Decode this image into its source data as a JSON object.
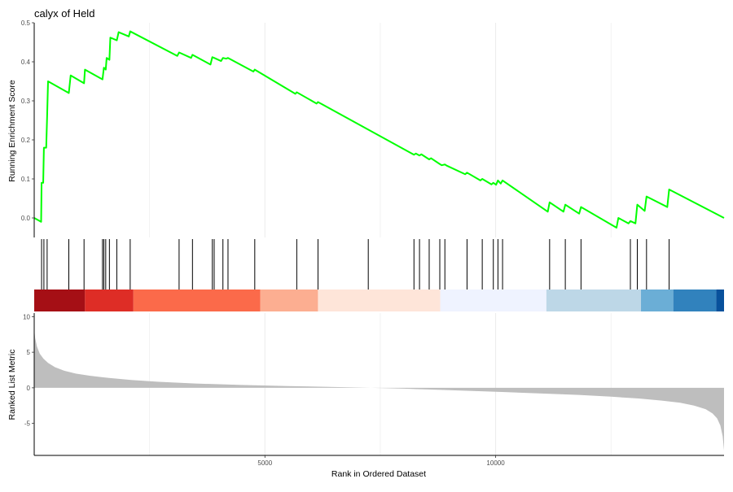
{
  "chart_data": {
    "type": "line",
    "title": "calyx of Held",
    "xlabel": "Rank in Ordered Dataset",
    "x_ticks": [
      5000,
      10000
    ],
    "xlim": [
      0,
      14950
    ],
    "panels": {
      "running_es": {
        "ylabel": "Running Enrichment Score",
        "ylim": [
          -0.05,
          0.5
        ],
        "y_ticks": [
          0.0,
          0.1,
          0.2,
          0.3,
          0.4,
          0.5
        ],
        "line_color": "#00FF00",
        "series": [
          {
            "x": [
              0,
              150,
              160,
              195,
              210,
              260,
              280,
              300,
              750,
              790,
              1080,
              1100,
              1480,
              1510,
              1550,
              1570,
              1630,
              1650,
              1790,
              1830,
              2050,
              2080,
              3100,
              3140,
              3400,
              3430,
              3820,
              3860,
              3900,
              4050,
              4090,
              4160,
              4200,
              4750,
              4780,
              5660,
              5690,
              6120,
              6150,
              8230,
              8270,
              8350,
              8390,
              8560,
              8600,
              8790,
              8830,
              8900,
              8940,
              9340,
              9380,
              9670,
              9710,
              9910,
              9950,
              10010,
              10050,
              10110,
              10150,
              11130,
              11170,
              11470,
              11510,
              11810,
              11850,
              12620,
              12660,
              12880,
              12920,
              13030,
              13070,
              13230,
              13270,
              13720,
              13760,
              14950
            ],
            "y": [
              0.0,
              -0.01,
              0.09,
              0.09,
              0.18,
              0.18,
              0.26,
              0.35,
              0.32,
              0.365,
              0.345,
              0.38,
              0.355,
              0.385,
              0.38,
              0.41,
              0.405,
              0.462,
              0.455,
              0.476,
              0.465,
              0.478,
              0.415,
              0.424,
              0.41,
              0.418,
              0.393,
              0.412,
              0.41,
              0.402,
              0.41,
              0.408,
              0.41,
              0.375,
              0.38,
              0.318,
              0.322,
              0.293,
              0.297,
              0.162,
              0.165,
              0.16,
              0.163,
              0.15,
              0.153,
              0.138,
              0.135,
              0.137,
              0.134,
              0.112,
              0.116,
              0.096,
              0.1,
              0.086,
              0.09,
              0.085,
              0.096,
              0.088,
              0.096,
              0.016,
              0.04,
              0.016,
              0.034,
              0.011,
              0.028,
              -0.025,
              0.0,
              -0.014,
              -0.008,
              -0.014,
              0.034,
              0.018,
              0.055,
              0.028,
              0.073,
              0.0
            ]
          }
        ]
      },
      "hits": {
        "positions": [
          160,
          210,
          280,
          750,
          1080,
          1480,
          1510,
          1550,
          1630,
          1790,
          2080,
          3140,
          3430,
          3860,
          3900,
          4090,
          4200,
          4780,
          5690,
          6150,
          7240,
          8230,
          8350,
          8560,
          8790,
          8900,
          9380,
          9710,
          9950,
          10050,
          10150,
          11170,
          11510,
          11850,
          12920,
          13070,
          13270,
          13760
        ],
        "color_bands": [
          {
            "start": 0,
            "end": 1100,
            "color": "#A50F15"
          },
          {
            "start": 1100,
            "end": 2150,
            "color": "#DE2D26"
          },
          {
            "start": 2150,
            "end": 4900,
            "color": "#FB6A4A"
          },
          {
            "start": 4900,
            "end": 6150,
            "color": "#FCAE91"
          },
          {
            "start": 6150,
            "end": 8800,
            "color": "#FEE5D9"
          },
          {
            "start": 8800,
            "end": 11100,
            "color": "#EFF3FF"
          },
          {
            "start": 11100,
            "end": 13150,
            "color": "#BDD7E7"
          },
          {
            "start": 13150,
            "end": 13850,
            "color": "#6BAED6"
          },
          {
            "start": 13850,
            "end": 14780,
            "color": "#3182BD"
          },
          {
            "start": 14780,
            "end": 14950,
            "color": "#08519C"
          }
        ]
      },
      "ranked_metric": {
        "ylabel": "Ranked List Metric",
        "ylim": [
          -9.5,
          10.5
        ],
        "y_ticks": [
          -5,
          0,
          5,
          10
        ],
        "fill_color": "#BEBEBE",
        "series": [
          {
            "x": [
              0,
              20,
              60,
              120,
              200,
              300,
              450,
              650,
              900,
              1200,
              1600,
              2100,
              2700,
              3500,
              4500,
              5500,
              6500,
              7300,
              8000,
              8800,
              9500,
              10200,
              11000,
              11800,
              12500,
              13100,
              13600,
              14000,
              14300,
              14550,
              14700,
              14800,
              14870,
              14920,
              14950
            ],
            "y": [
              8.3,
              7.0,
              5.8,
              4.8,
              4.1,
              3.5,
              2.9,
              2.4,
              2.0,
              1.7,
              1.4,
              1.1,
              0.85,
              0.6,
              0.4,
              0.25,
              0.12,
              0.0,
              -0.12,
              -0.28,
              -0.45,
              -0.6,
              -0.8,
              -1.0,
              -1.25,
              -1.5,
              -1.8,
              -2.1,
              -2.5,
              -3.0,
              -3.6,
              -4.3,
              -5.3,
              -6.8,
              -8.8
            ]
          }
        ]
      }
    }
  }
}
